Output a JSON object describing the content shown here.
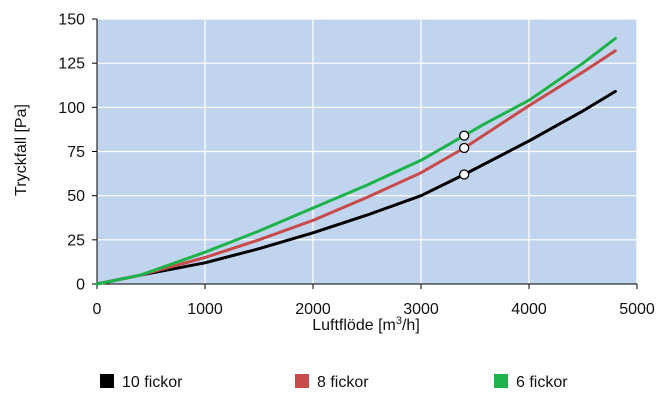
{
  "chart_data": {
    "type": "line",
    "xlabel": "Luftflöde [m3/h]",
    "xlabel_parts": {
      "before": "Luftflöde [m",
      "superscript": "3",
      "after": "/h]"
    },
    "ylabel": "Tryckfall [Pa]",
    "xlim": [
      0,
      5000
    ],
    "ylim": [
      0,
      150
    ],
    "x_ticks": [
      0,
      1000,
      2000,
      3000,
      4000,
      5000
    ],
    "y_ticks": [
      0,
      25,
      50,
      75,
      100,
      125,
      150
    ],
    "x_tick_labels": [
      "0",
      "1000",
      "2000",
      "3000",
      "4000",
      "5000"
    ],
    "y_tick_labels": [
      "0",
      "25",
      "50",
      "75",
      "100",
      "125",
      "150"
    ],
    "grid": true,
    "legend_position": "bottom",
    "plot_background": "#c0d4ee",
    "grid_color": "#ffffff",
    "series": [
      {
        "name": "10 fickor",
        "color": "#000000",
        "x": [
          0,
          400,
          1000,
          1500,
          2000,
          2500,
          3000,
          3400,
          4000,
          4500,
          4800
        ],
        "y": [
          0,
          5,
          12,
          20,
          29,
          39,
          50,
          62,
          81,
          98,
          109
        ],
        "marker": {
          "x": 3400,
          "y": 62
        }
      },
      {
        "name": "8 fickor",
        "color": "#c84b4b",
        "x": [
          0,
          400,
          1000,
          1500,
          2000,
          2500,
          3000,
          3400,
          4000,
          4500,
          4800
        ],
        "y": [
          0,
          5,
          15,
          25,
          36,
          49,
          63,
          77,
          101,
          120,
          132
        ],
        "marker": {
          "x": 3400,
          "y": 77
        }
      },
      {
        "name": "6 fickor",
        "color": "#1db34a",
        "x": [
          0,
          400,
          1000,
          1500,
          2000,
          2500,
          3000,
          3400,
          3600,
          4000,
          4500,
          4800
        ],
        "y": [
          0,
          5,
          18,
          30,
          43,
          56,
          70,
          84,
          91,
          104,
          125,
          139
        ],
        "marker": {
          "x": 3400,
          "y": 84
        }
      }
    ]
  }
}
